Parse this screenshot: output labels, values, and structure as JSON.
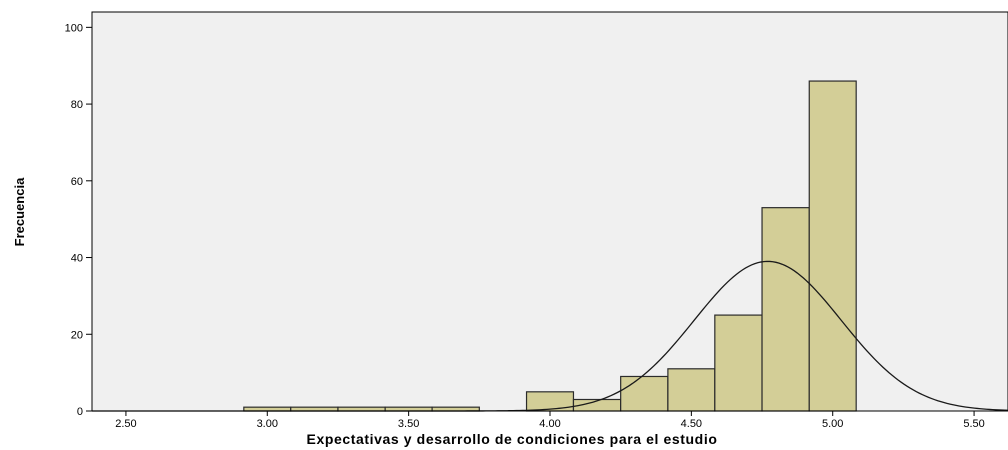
{
  "chart_data": {
    "type": "bar",
    "subtype": "histogram",
    "title": "",
    "xlabel": "Expectativas y desarrollo de condiciones para el estudio",
    "ylabel": "Frecuencia",
    "xlim": [
      2.38,
      5.62
    ],
    "ylim": [
      0,
      104
    ],
    "x_ticks": [
      2.5,
      3.0,
      3.5,
      4.0,
      4.5,
      5.0,
      5.5
    ],
    "x_tick_labels": [
      "2.50",
      "3.00",
      "3.50",
      "4.00",
      "4.50",
      "5.00",
      "5.50"
    ],
    "y_ticks": [
      0,
      20,
      40,
      60,
      80,
      100
    ],
    "y_tick_labels": [
      "0",
      "20",
      "40",
      "60",
      "80",
      "100"
    ],
    "bin_width": 0.1667,
    "bins": [
      {
        "start": 2.917,
        "end": 3.083,
        "count": 1
      },
      {
        "start": 3.083,
        "end": 3.25,
        "count": 1
      },
      {
        "start": 3.25,
        "end": 3.417,
        "count": 1
      },
      {
        "start": 3.417,
        "end": 3.583,
        "count": 1
      },
      {
        "start": 3.583,
        "end": 3.75,
        "count": 1
      },
      {
        "start": 3.917,
        "end": 4.083,
        "count": 5
      },
      {
        "start": 4.083,
        "end": 4.25,
        "count": 3
      },
      {
        "start": 4.25,
        "end": 4.417,
        "count": 9
      },
      {
        "start": 4.417,
        "end": 4.583,
        "count": 11
      },
      {
        "start": 4.583,
        "end": 4.75,
        "count": 25
      },
      {
        "start": 4.75,
        "end": 4.917,
        "count": 53
      },
      {
        "start": 4.917,
        "end": 5.083,
        "count": 86
      }
    ],
    "normal_curve": {
      "mean": 4.77,
      "std": 0.26,
      "peak": 39
    },
    "grid": false,
    "legend": "none",
    "colors": {
      "plot_background": "#f0f0f0",
      "bar_fill": "#d3ce97",
      "bar_stroke": "#2b2b2b",
      "curve": "#1a1a1a"
    }
  }
}
